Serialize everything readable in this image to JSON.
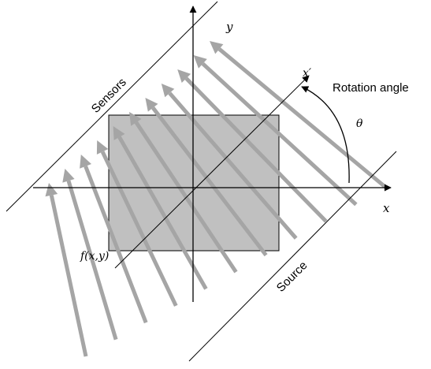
{
  "labels": {
    "y_axis": "y",
    "x_axis": "x",
    "x_prime": "x′",
    "theta": "θ",
    "rotation_angle": "Rotation angle",
    "sensors": "Sensors",
    "source": "Source",
    "function": "f(x,y)"
  },
  "colors": {
    "rectangle_fill": "#c0c0c0",
    "ray_color": "#a5a5a5",
    "line_color": "#000000"
  },
  "ray_count": 11
}
